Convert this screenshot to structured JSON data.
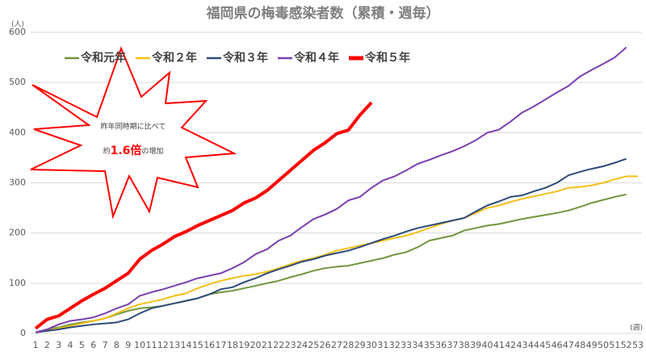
{
  "chart_data": {
    "type": "line",
    "title": "福岡県の梅毒感染者数（累積・週毎）",
    "y_unit": "(人)",
    "x_unit": "(週)",
    "categories": [
      1,
      2,
      3,
      4,
      5,
      6,
      7,
      8,
      9,
      10,
      11,
      12,
      13,
      14,
      15,
      16,
      17,
      18,
      19,
      20,
      21,
      22,
      23,
      24,
      25,
      26,
      27,
      28,
      29,
      30,
      31,
      32,
      33,
      34,
      35,
      36,
      37,
      38,
      39,
      40,
      41,
      42,
      43,
      44,
      45,
      46,
      47,
      48,
      49,
      50,
      51,
      52,
      53
    ],
    "ylim": [
      0,
      600
    ],
    "yticks": [
      0,
      100,
      200,
      300,
      400,
      500,
      600
    ],
    "grid": true,
    "series": [
      {
        "name": "令和元年",
        "color": "#70963c",
        "values": [
          2,
          8,
          12,
          18,
          22,
          25,
          30,
          38,
          45,
          50,
          52,
          55,
          60,
          65,
          70,
          78,
          82,
          85,
          90,
          95,
          100,
          105,
          112,
          118,
          125,
          130,
          133,
          135,
          140,
          145,
          150,
          157,
          162,
          172,
          185,
          190,
          195,
          205,
          210,
          215,
          218,
          223,
          228,
          232,
          236,
          240,
          245,
          252,
          260,
          266,
          272,
          277,
          null
        ]
      },
      {
        "name": "令和２年",
        "color": "#f5bf18",
        "values": [
          2,
          5,
          10,
          15,
          20,
          25,
          30,
          40,
          50,
          58,
          63,
          68,
          75,
          80,
          90,
          98,
          105,
          110,
          115,
          118,
          123,
          130,
          138,
          145,
          150,
          157,
          165,
          170,
          175,
          180,
          185,
          190,
          195,
          202,
          210,
          218,
          225,
          230,
          240,
          250,
          255,
          262,
          268,
          273,
          278,
          283,
          290,
          292,
          295,
          300,
          307,
          313,
          313
        ]
      },
      {
        "name": "令和３年",
        "color": "#2e4a78",
        "values": [
          2,
          5,
          8,
          12,
          15,
          18,
          20,
          22,
          28,
          40,
          50,
          55,
          60,
          65,
          70,
          78,
          88,
          92,
          102,
          110,
          120,
          128,
          135,
          143,
          148,
          155,
          160,
          165,
          172,
          180,
          188,
          195,
          203,
          210,
          215,
          220,
          225,
          230,
          243,
          255,
          263,
          272,
          275,
          283,
          290,
          300,
          315,
          322,
          328,
          333,
          340,
          348,
          null
        ]
      },
      {
        "name": "令和４年",
        "color": "#7b3fb0",
        "values": [
          2,
          8,
          18,
          25,
          28,
          32,
          40,
          50,
          58,
          75,
          82,
          88,
          95,
          102,
          110,
          115,
          120,
          130,
          142,
          158,
          168,
          185,
          195,
          212,
          228,
          237,
          248,
          265,
          272,
          290,
          305,
          313,
          325,
          338,
          346,
          355,
          363,
          373,
          385,
          400,
          406,
          422,
          440,
          452,
          466,
          480,
          493,
          512,
          525,
          537,
          550,
          570,
          null
        ]
      },
      {
        "name": "令和５年",
        "color": "#ff0000",
        "values": [
          10,
          28,
          35,
          50,
          65,
          78,
          90,
          105,
          120,
          148,
          165,
          178,
          193,
          203,
          215,
          225,
          235,
          245,
          260,
          270,
          285,
          305,
          325,
          345,
          365,
          380,
          398,
          405,
          435,
          460,
          null,
          null,
          null,
          null,
          null,
          null,
          null,
          null,
          null,
          null,
          null,
          null,
          null,
          null,
          null,
          null,
          null,
          null,
          null,
          null,
          null,
          null,
          null
        ]
      }
    ],
    "annotation": {
      "line1": "昨年同時期に比べて",
      "prefix": "約",
      "highlight": "1.6倍",
      "suffix": "の増加"
    }
  }
}
